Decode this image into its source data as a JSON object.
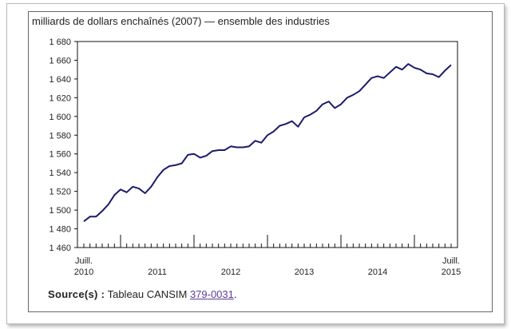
{
  "chart_data": {
    "type": "line",
    "title": "milliards de dollars enchaînés (2007) — ensemble des industries",
    "xlabel": "",
    "ylabel": "",
    "ylim": [
      1460,
      1680
    ],
    "yticks": [
      "1 460",
      "1 480",
      "1 500",
      "1 520",
      "1 540",
      "1 560",
      "1 580",
      "1 600",
      "1 620",
      "1 640",
      "1 660",
      "1 680"
    ],
    "x_start": {
      "line1": "Juill.",
      "line2": "2010"
    },
    "x_end": {
      "line1": "Juill.",
      "line2": "2015"
    },
    "year_labels": [
      "2011",
      "2012",
      "2013",
      "2014"
    ],
    "grid": false,
    "series": [
      {
        "color": "#1a1a6e",
        "x": [
          "2010-07",
          "2010-08",
          "2010-09",
          "2010-10",
          "2010-11",
          "2010-12",
          "2011-01",
          "2011-02",
          "2011-03",
          "2011-04",
          "2011-05",
          "2011-06",
          "2011-07",
          "2011-08",
          "2011-09",
          "2011-10",
          "2011-11",
          "2011-12",
          "2012-01",
          "2012-02",
          "2012-03",
          "2012-04",
          "2012-05",
          "2012-06",
          "2012-07",
          "2012-08",
          "2012-09",
          "2012-10",
          "2012-11",
          "2012-12",
          "2013-01",
          "2013-02",
          "2013-03",
          "2013-04",
          "2013-05",
          "2013-06",
          "2013-07",
          "2013-08",
          "2013-09",
          "2013-10",
          "2013-11",
          "2013-12",
          "2014-01",
          "2014-02",
          "2014-03",
          "2014-04",
          "2014-05",
          "2014-06",
          "2014-07",
          "2014-08",
          "2014-09",
          "2014-10",
          "2014-11",
          "2014-12",
          "2015-01",
          "2015-02",
          "2015-03",
          "2015-04",
          "2015-05",
          "2015-06",
          "2015-07"
        ],
        "values": [
          1488,
          1493,
          1493,
          1499,
          1506,
          1516,
          1522,
          1519,
          1525,
          1523,
          1518,
          1525,
          1535,
          1543,
          1547,
          1548,
          1550,
          1559,
          1560,
          1556,
          1558,
          1563,
          1564,
          1564,
          1568,
          1567,
          1567,
          1568,
          1574,
          1572,
          1580,
          1584,
          1590,
          1592,
          1595,
          1589,
          1599,
          1602,
          1606,
          1613,
          1616,
          1609,
          1613,
          1620,
          1623,
          1627,
          1634,
          1641,
          1643,
          1641,
          1647,
          1653,
          1650,
          1656,
          1652,
          1650,
          1646,
          1645,
          1642,
          1649,
          1655
        ]
      }
    ]
  },
  "source": {
    "label": "Source(s) :",
    "text": "Tableau CANSIM",
    "link": "379-0031",
    "suffix": "."
  }
}
